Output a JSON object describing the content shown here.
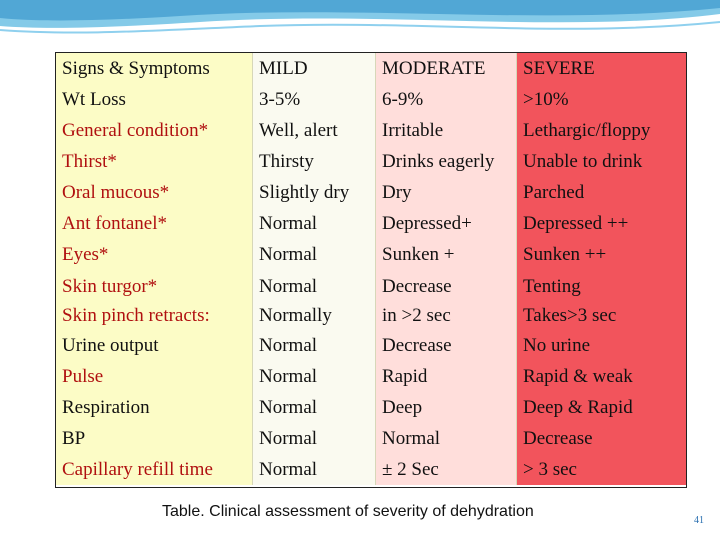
{
  "rows": [
    [
      "Signs & Symptoms",
      "MILD",
      "MODERATE",
      "SEVERE"
    ],
    [
      " Wt Loss",
      "3-5%",
      "6-9%",
      " >10%"
    ],
    [
      "General condition*",
      "Well, alert",
      "Irritable",
      "Lethargic/floppy"
    ],
    [
      "Thirst*",
      "Thirsty",
      "Drinks eagerly",
      "Unable to drink"
    ],
    [
      "Oral mucous*",
      "Slightly dry",
      "Dry",
      "Parched"
    ],
    [
      "Ant fontanel*",
      "Normal",
      "Depressed+",
      "Depressed ++"
    ],
    [
      "Eyes*",
      "Normal",
      "Sunken +",
      "Sunken ++"
    ],
    [
      [
        "Skin turgor*",
        "Skin pinch retracts:"
      ],
      [
        "Normal",
        "Normally"
      ],
      [
        "Decrease",
        "in >2 sec"
      ],
      [
        "Tenting",
        "Takes>3 sec"
      ]
    ],
    [
      "Urine output",
      "Normal",
      "Decrease",
      "No urine"
    ],
    [
      "Pulse",
      "Normal",
      "Rapid",
      "Rapid & weak"
    ],
    [
      "Respiration",
      "Normal",
      "Deep",
      "Deep & Rapid"
    ],
    [
      "BP",
      "Normal",
      "Normal",
      "Decrease"
    ],
    [
      "Capillary refill time",
      "Normal",
      "± 2 Sec",
      "> 3 sec"
    ]
  ],
  "red_label_rows": [
    2,
    3,
    4,
    5,
    6,
    7,
    9,
    12
  ],
  "caption": "Table. Clinical assessment of severity of dehydration",
  "page_number": "41"
}
